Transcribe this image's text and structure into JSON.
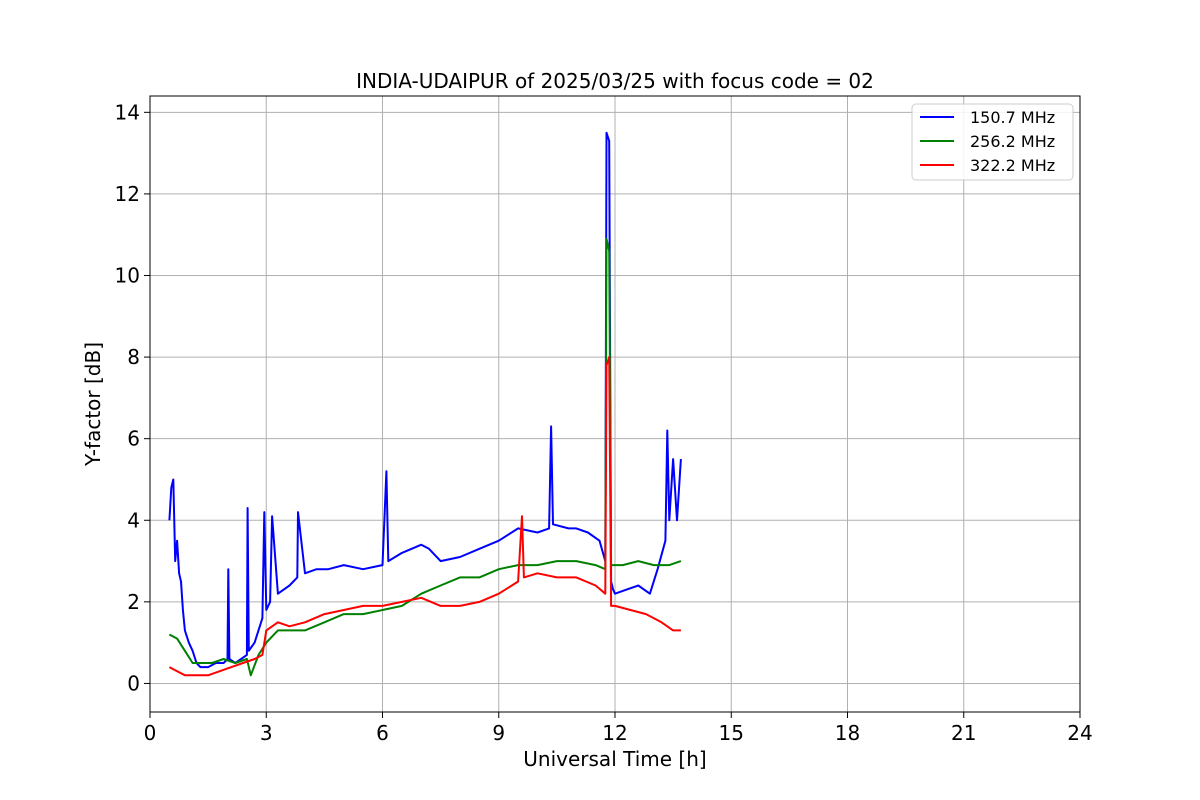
{
  "chart_data": {
    "type": "line",
    "title": "INDIA-UDAIPUR of 2025/03/25 with focus code = 02",
    "xlabel": "Universal Time [h]",
    "ylabel": "Y-factor [dB]",
    "xlim": [
      0,
      24
    ],
    "ylim": [
      -0.7,
      14.4
    ],
    "xticks": [
      0,
      3,
      6,
      9,
      12,
      15,
      18,
      21,
      24
    ],
    "yticks": [
      0,
      2,
      4,
      6,
      8,
      10,
      12,
      14
    ],
    "grid": true,
    "legend_position": "top-right",
    "series": [
      {
        "name": "150.7 MHz",
        "color": "#0000ff",
        "x": [
          0.5,
          0.55,
          0.6,
          0.65,
          0.7,
          0.75,
          0.8,
          0.85,
          0.9,
          1.0,
          1.1,
          1.2,
          1.3,
          1.5,
          1.7,
          1.9,
          2.0,
          2.02,
          2.05,
          2.2,
          2.5,
          2.52,
          2.55,
          2.7,
          2.9,
          2.95,
          3.0,
          3.1,
          3.15,
          3.3,
          3.6,
          3.8,
          3.82,
          4.0,
          4.3,
          4.6,
          5.0,
          5.5,
          6.0,
          6.1,
          6.15,
          6.5,
          7.0,
          7.2,
          7.5,
          8.0,
          8.5,
          9.0,
          9.5,
          10.0,
          10.3,
          10.35,
          10.4,
          10.8,
          11.0,
          11.3,
          11.6,
          11.75,
          11.78,
          11.85,
          11.9,
          11.95,
          12.0,
          12.3,
          12.6,
          12.9,
          13.1,
          13.3,
          13.35,
          13.4,
          13.5,
          13.6,
          13.7
        ],
        "values": [
          4.0,
          4.8,
          5.0,
          3.0,
          3.5,
          2.7,
          2.5,
          1.8,
          1.3,
          1.0,
          0.8,
          0.5,
          0.4,
          0.4,
          0.5,
          0.5,
          0.6,
          2.8,
          0.6,
          0.5,
          0.7,
          4.3,
          0.8,
          1.0,
          1.6,
          4.2,
          1.8,
          2.0,
          4.1,
          2.2,
          2.4,
          2.6,
          4.2,
          2.7,
          2.8,
          2.8,
          2.9,
          2.8,
          2.9,
          5.2,
          3.0,
          3.2,
          3.4,
          3.3,
          3.0,
          3.1,
          3.3,
          3.5,
          3.8,
          3.7,
          3.8,
          6.3,
          3.9,
          3.8,
          3.8,
          3.7,
          3.5,
          3.0,
          13.5,
          13.3,
          2.5,
          2.3,
          2.2,
          2.3,
          2.4,
          2.2,
          2.8,
          3.5,
          6.2,
          4.0,
          5.5,
          4.0,
          5.5
        ]
      },
      {
        "name": "256.2 MHz",
        "color": "#008000",
        "x": [
          0.5,
          0.7,
          0.9,
          1.1,
          1.3,
          1.6,
          1.9,
          2.2,
          2.5,
          2.6,
          2.8,
          3.0,
          3.3,
          3.6,
          4.0,
          4.5,
          5.0,
          5.5,
          6.0,
          6.5,
          7.0,
          7.5,
          8.0,
          8.5,
          9.0,
          9.5,
          10.0,
          10.5,
          11.0,
          11.5,
          11.75,
          11.78,
          11.85,
          11.9,
          12.2,
          12.6,
          13.0,
          13.4,
          13.7
        ],
        "values": [
          1.2,
          1.1,
          0.8,
          0.5,
          0.5,
          0.5,
          0.6,
          0.5,
          0.6,
          0.2,
          0.7,
          1.0,
          1.3,
          1.3,
          1.3,
          1.5,
          1.7,
          1.7,
          1.8,
          1.9,
          2.2,
          2.4,
          2.6,
          2.6,
          2.8,
          2.9,
          2.9,
          3.0,
          3.0,
          2.9,
          2.8,
          10.9,
          10.6,
          2.9,
          2.9,
          3.0,
          2.9,
          2.9,
          3.0
        ]
      },
      {
        "name": "322.2 MHz",
        "color": "#ff0000",
        "x": [
          0.5,
          0.7,
          0.9,
          1.2,
          1.5,
          1.8,
          2.1,
          2.4,
          2.7,
          2.9,
          3.0,
          3.3,
          3.6,
          4.0,
          4.5,
          5.0,
          5.5,
          6.0,
          6.5,
          7.0,
          7.5,
          8.0,
          8.5,
          9.0,
          9.5,
          9.6,
          9.65,
          10.0,
          10.5,
          11.0,
          11.5,
          11.75,
          11.78,
          11.85,
          11.9,
          12.0,
          12.4,
          12.8,
          13.2,
          13.5,
          13.7
        ],
        "values": [
          0.4,
          0.3,
          0.2,
          0.2,
          0.2,
          0.3,
          0.4,
          0.5,
          0.6,
          0.7,
          1.3,
          1.5,
          1.4,
          1.5,
          1.7,
          1.8,
          1.9,
          1.9,
          2.0,
          2.1,
          1.9,
          1.9,
          2.0,
          2.2,
          2.5,
          4.1,
          2.6,
          2.7,
          2.6,
          2.6,
          2.4,
          2.2,
          7.8,
          8.0,
          1.9,
          1.9,
          1.8,
          1.7,
          1.5,
          1.3,
          1.3
        ]
      }
    ]
  }
}
